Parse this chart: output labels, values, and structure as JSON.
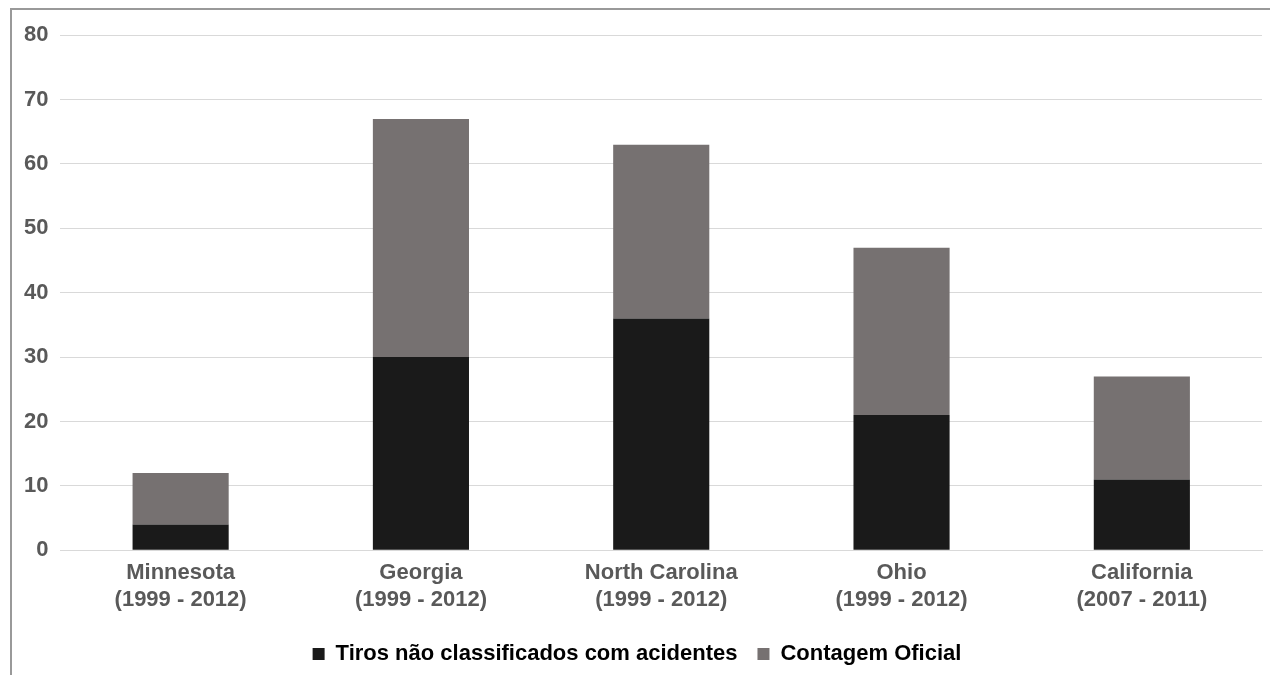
{
  "chart_data": {
    "type": "bar",
    "stacked": true,
    "categories": [
      "Minnesota\n(1999 - 2012)",
      "Georgia\n(1999 - 2012)",
      "North Carolina\n(1999 - 2012)",
      "Ohio\n(1999 - 2012)",
      "California\n(2007 - 2011)"
    ],
    "series": [
      {
        "name": "Tiros não classificados com acidentes",
        "color": "#1a1a1a",
        "values": [
          4,
          30,
          36,
          21,
          11
        ]
      },
      {
        "name": "Contagem Oficial",
        "color": "#767171",
        "values": [
          8,
          37,
          27,
          26,
          16
        ]
      }
    ],
    "ylim": [
      0,
      80
    ],
    "yticks": [
      0,
      10,
      20,
      30,
      40,
      50,
      60,
      70,
      80
    ],
    "grid": "y",
    "legend": "bottom"
  }
}
